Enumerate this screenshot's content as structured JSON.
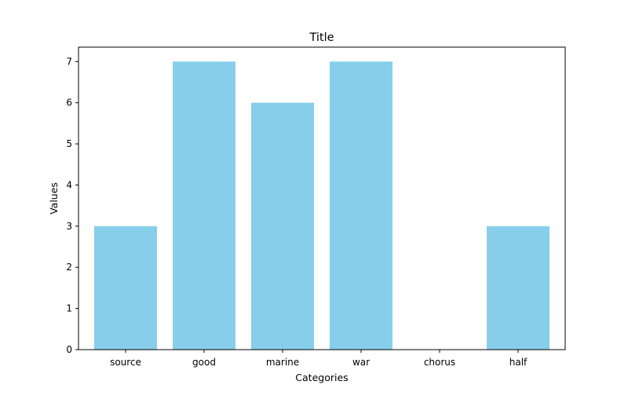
{
  "chart_data": {
    "type": "bar",
    "title": "Title",
    "xlabel": "Categories",
    "ylabel": "Values",
    "categories": [
      "source",
      "good",
      "marine",
      "war",
      "chorus",
      "half"
    ],
    "values": [
      3,
      7,
      6,
      7,
      0,
      3
    ],
    "ylim": [
      0,
      7.35
    ],
    "yticks": [
      0,
      1,
      2,
      3,
      4,
      5,
      6,
      7
    ],
    "bar_color": "#87CEEB",
    "grid": false,
    "legend": false
  }
}
